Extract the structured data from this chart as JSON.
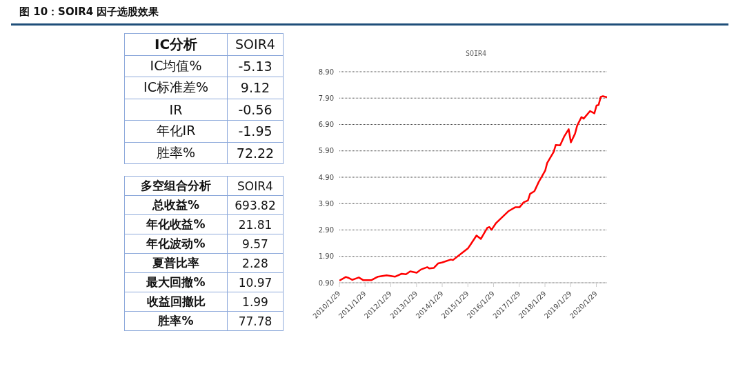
{
  "chart_data": [
    {
      "type": "other",
      "annotations": [
        "图 10：SOIR4 因子选股效果"
      ],
      "title": "IC分析",
      "categories": [
        "IC均值%",
        "IC标准差%",
        "IR",
        "年化IR",
        "胜率%"
      ],
      "series": [
        {
          "name": "SOIR4",
          "values": [
            -5.13,
            9.12,
            -0.56,
            -1.95,
            72.22
          ]
        }
      ],
      "data_labels": true
    },
    {
      "type": "other",
      "title": "多空组合分析",
      "categories": [
        "总收益%",
        "年化收益%",
        "年化波动%",
        "夏普比率",
        "最大回撤%",
        "收益回撤比",
        "胜率%"
      ],
      "series": [
        {
          "name": "SOIR4",
          "values": [
            693.82,
            21.81,
            9.57,
            2.28,
            10.97,
            1.99,
            77.78
          ]
        }
      ],
      "data_labels": true
    },
    {
      "type": "line",
      "title": "SOIR4",
      "grid": "y",
      "line_style": "solid",
      "x": [
        "2010-01-29",
        "2010-05",
        "2010-06",
        "2010-08",
        "2010-09",
        "2010-11",
        "2011-01",
        "2011-05",
        "2011-08",
        "2011-12",
        "2012-04",
        "2012-07",
        "2012-09",
        "2012-11",
        "2013-02",
        "2013-04",
        "2013-07",
        "2013-08",
        "2013-10",
        "2013-12",
        "2014-02",
        "2014-06",
        "2014-07",
        "2014-11",
        "2015-02",
        "2015-03",
        "2015-06",
        "2015-08",
        "2015-09",
        "2015-11",
        "2015-12",
        "2016-01",
        "2016-03",
        "2016-05",
        "2016-09",
        "2016-12",
        "2017-02",
        "2017-04",
        "2017-06",
        "2017-07",
        "2017-09",
        "2017-11",
        "2018-02",
        "2018-03",
        "2018-06",
        "2018-07",
        "2018-09",
        "2018-11",
        "2019-01",
        "2019-02",
        "2019-04",
        "2019-05",
        "2019-07",
        "2019-08",
        "2019-11",
        "2020-01",
        "2020-02",
        "2020-03",
        "2020-04",
        "2020-05",
        "2020-06-29"
      ],
      "series": [
        {
          "color": "#ff0000",
          "values": [
            0.98,
            1.12,
            1.09,
            1.01,
            1.04,
            1.1,
            1.0,
            1.0,
            1.13,
            1.18,
            1.13,
            1.24,
            1.22,
            1.33,
            1.28,
            1.4,
            1.49,
            1.44,
            1.46,
            1.63,
            1.67,
            1.78,
            1.76,
            2.02,
            2.21,
            2.32,
            2.69,
            2.56,
            2.7,
            2.98,
            3.01,
            2.91,
            3.15,
            3.31,
            3.62,
            3.76,
            3.76,
            3.95,
            4.02,
            4.27,
            4.37,
            4.72,
            5.15,
            5.44,
            5.86,
            6.12,
            6.11,
            6.46,
            6.72,
            6.22,
            6.55,
            6.85,
            7.18,
            7.12,
            7.41,
            7.32,
            7.62,
            7.64,
            7.95,
            7.97,
            7.93
          ]
        }
      ],
      "xlim": [
        "2010-01-29",
        "2020-06-29"
      ],
      "xticks": [
        {
          "value": "2010-01-29",
          "label": "2010/1/29"
        },
        {
          "value": "2011-01-29",
          "label": "2011/1/29"
        },
        {
          "value": "2012-01-29",
          "label": "2012/1/29"
        },
        {
          "value": "2013-01-29",
          "label": "2013/1/29"
        },
        {
          "value": "2014-01-29",
          "label": "2014/1/29"
        },
        {
          "value": "2015-01-29",
          "label": "2015/1/29"
        },
        {
          "value": "2016-01-29",
          "label": "2016/1/29"
        },
        {
          "value": "2017-01-29",
          "label": "2017/1/29"
        },
        {
          "value": "2018-01-29",
          "label": "2018/1/29"
        },
        {
          "value": "2019-01-29",
          "label": "2019/1/29"
        },
        {
          "value": "2020-01-29",
          "label": "2020/1/29"
        }
      ],
      "ylim": [
        0.9,
        8.9
      ],
      "yticks": [
        {
          "value": 0.9,
          "label": "0.90"
        },
        {
          "value": 1.9,
          "label": "1.90"
        },
        {
          "value": 2.9,
          "label": "2.90"
        },
        {
          "value": 3.9,
          "label": "3.90"
        },
        {
          "value": 4.9,
          "label": "4.90"
        },
        {
          "value": 5.9,
          "label": "5.90"
        },
        {
          "value": 6.9,
          "label": "6.90"
        },
        {
          "value": 7.9,
          "label": "7.90"
        },
        {
          "value": 8.9,
          "label": "8.90"
        }
      ]
    }
  ]
}
